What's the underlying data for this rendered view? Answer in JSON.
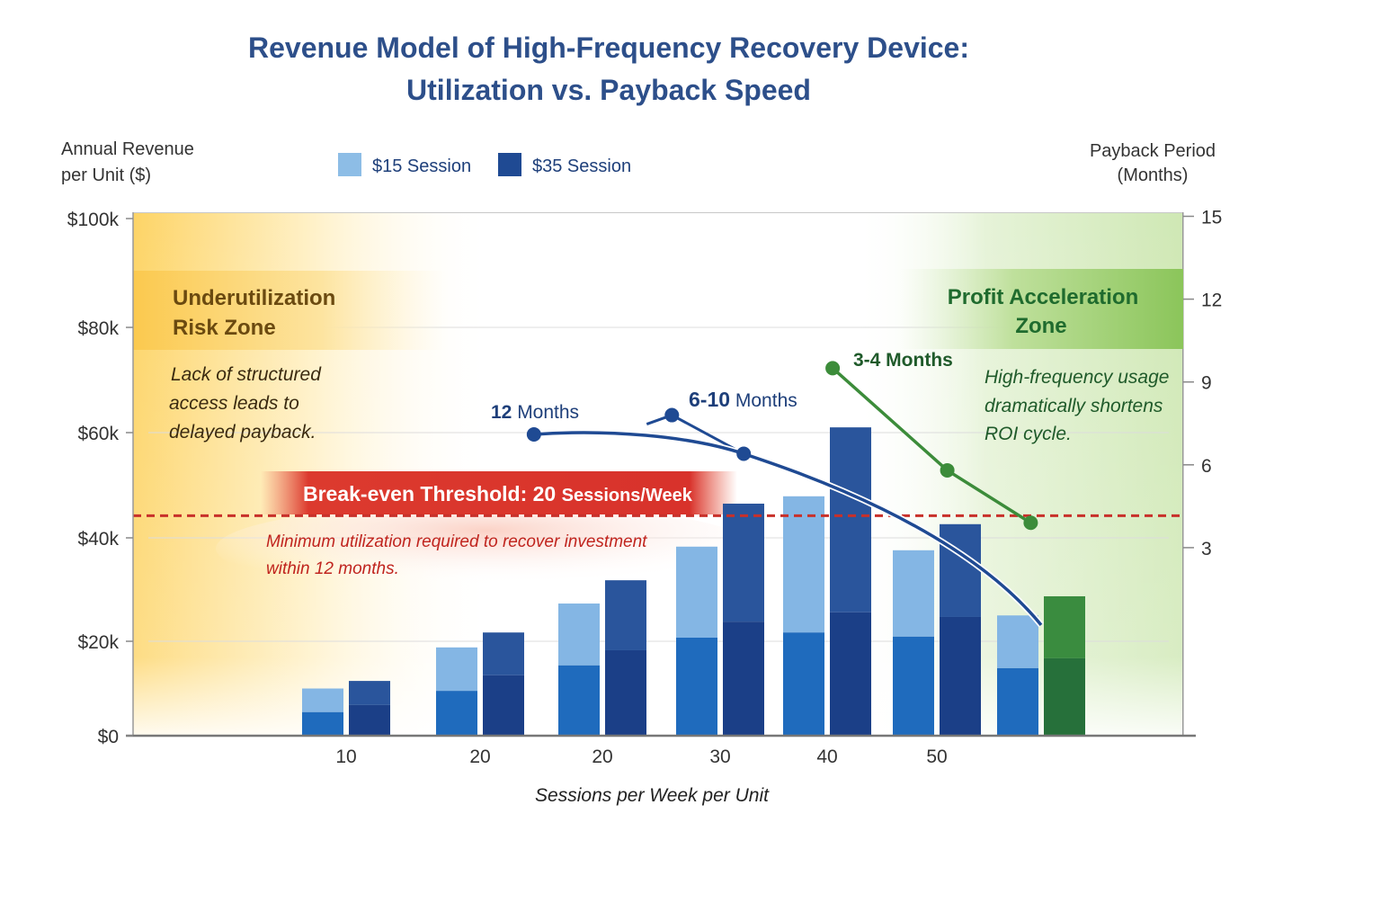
{
  "chart_data": {
    "type": "bar",
    "title_line1": "Revenue Model of High-Frequency Recovery Device:",
    "title_line2": "Utilization vs. Payback Speed",
    "ylabel_line1": "Annual Revenue",
    "ylabel_line2": "per Unit ($)",
    "y2label_line1": "Payback Period",
    "y2label_line2": "(Months)",
    "xlabel": "Sessions per Week per Unit",
    "ylim": [
      0,
      100000
    ],
    "y_ticks": [
      "$100k",
      "$80k",
      "$60k",
      "$40k",
      "$20k",
      "$0"
    ],
    "y2lim": [
      0,
      15
    ],
    "y2_ticks": [
      "15",
      "12",
      "9",
      "6",
      "3"
    ],
    "categories": [
      "10",
      "20",
      "20",
      "30",
      "40",
      "50",
      ""
    ],
    "grid": true,
    "legend_placement": "top-center",
    "legend": [
      {
        "label": "$15 Session",
        "color": "#8dbde6"
      },
      {
        "label": "$35 Session",
        "color": "#1f4a93"
      }
    ],
    "series": [
      {
        "name": "$15 Session",
        "values": [
          10000,
          18700,
          27300,
          38300,
          47900,
          37600,
          25000
        ],
        "lower_segment": [
          5000,
          9500,
          14900,
          20700,
          21700,
          20900,
          14300
        ]
      },
      {
        "name": "$35 Session",
        "values": [
          11600,
          21700,
          31800,
          46500,
          61000,
          42600,
          28700
        ],
        "lower_segment": [
          6500,
          12800,
          18100,
          23800,
          25600,
          24700,
          16400
        ],
        "last_bar_color": "green"
      }
    ],
    "payback_lines": [
      {
        "color": "#1f4a93",
        "points_months": [
          7.1,
          7.8,
          6.4,
          0.2
        ]
      },
      {
        "color": "#3c8c3a",
        "points_months": [
          9.5,
          5.8,
          3.9
        ]
      }
    ],
    "break_even_revenue": 44200,
    "annotations": {
      "twelve_num": "12",
      "twelve_unit": " Months",
      "six_ten_num": "6-10",
      "six_ten_unit": " Months",
      "three_four": "3-4 Months",
      "banner_main": "Break-even Threshold: 20 ",
      "banner_small": "Sessions/Week",
      "min_util_1": "Minimum utilization required to recover investment",
      "min_util_2": "within 12 months.",
      "under_zone_1": "Underutilization",
      "under_zone_2": "Risk Zone",
      "under_note_1": "Lack of structured",
      "under_note_2": "access leads to",
      "under_note_3": "delayed payback.",
      "profit_zone_1": "Profit Acceleration",
      "profit_zone_2": "Zone",
      "profit_note_1": "High-frequency usage",
      "profit_note_2": "dramatically shortens",
      "profit_note_3": "ROI cycle."
    },
    "colors": {
      "s15_upper": "#84b6e4",
      "s15_lower": "#1f6bbd",
      "s35_upper": "#2a559c",
      "s35_lower": "#1b3f87",
      "green_upper": "#3a8c3f",
      "green_lower": "#26703a",
      "break_even": "#c8302a"
    }
  }
}
